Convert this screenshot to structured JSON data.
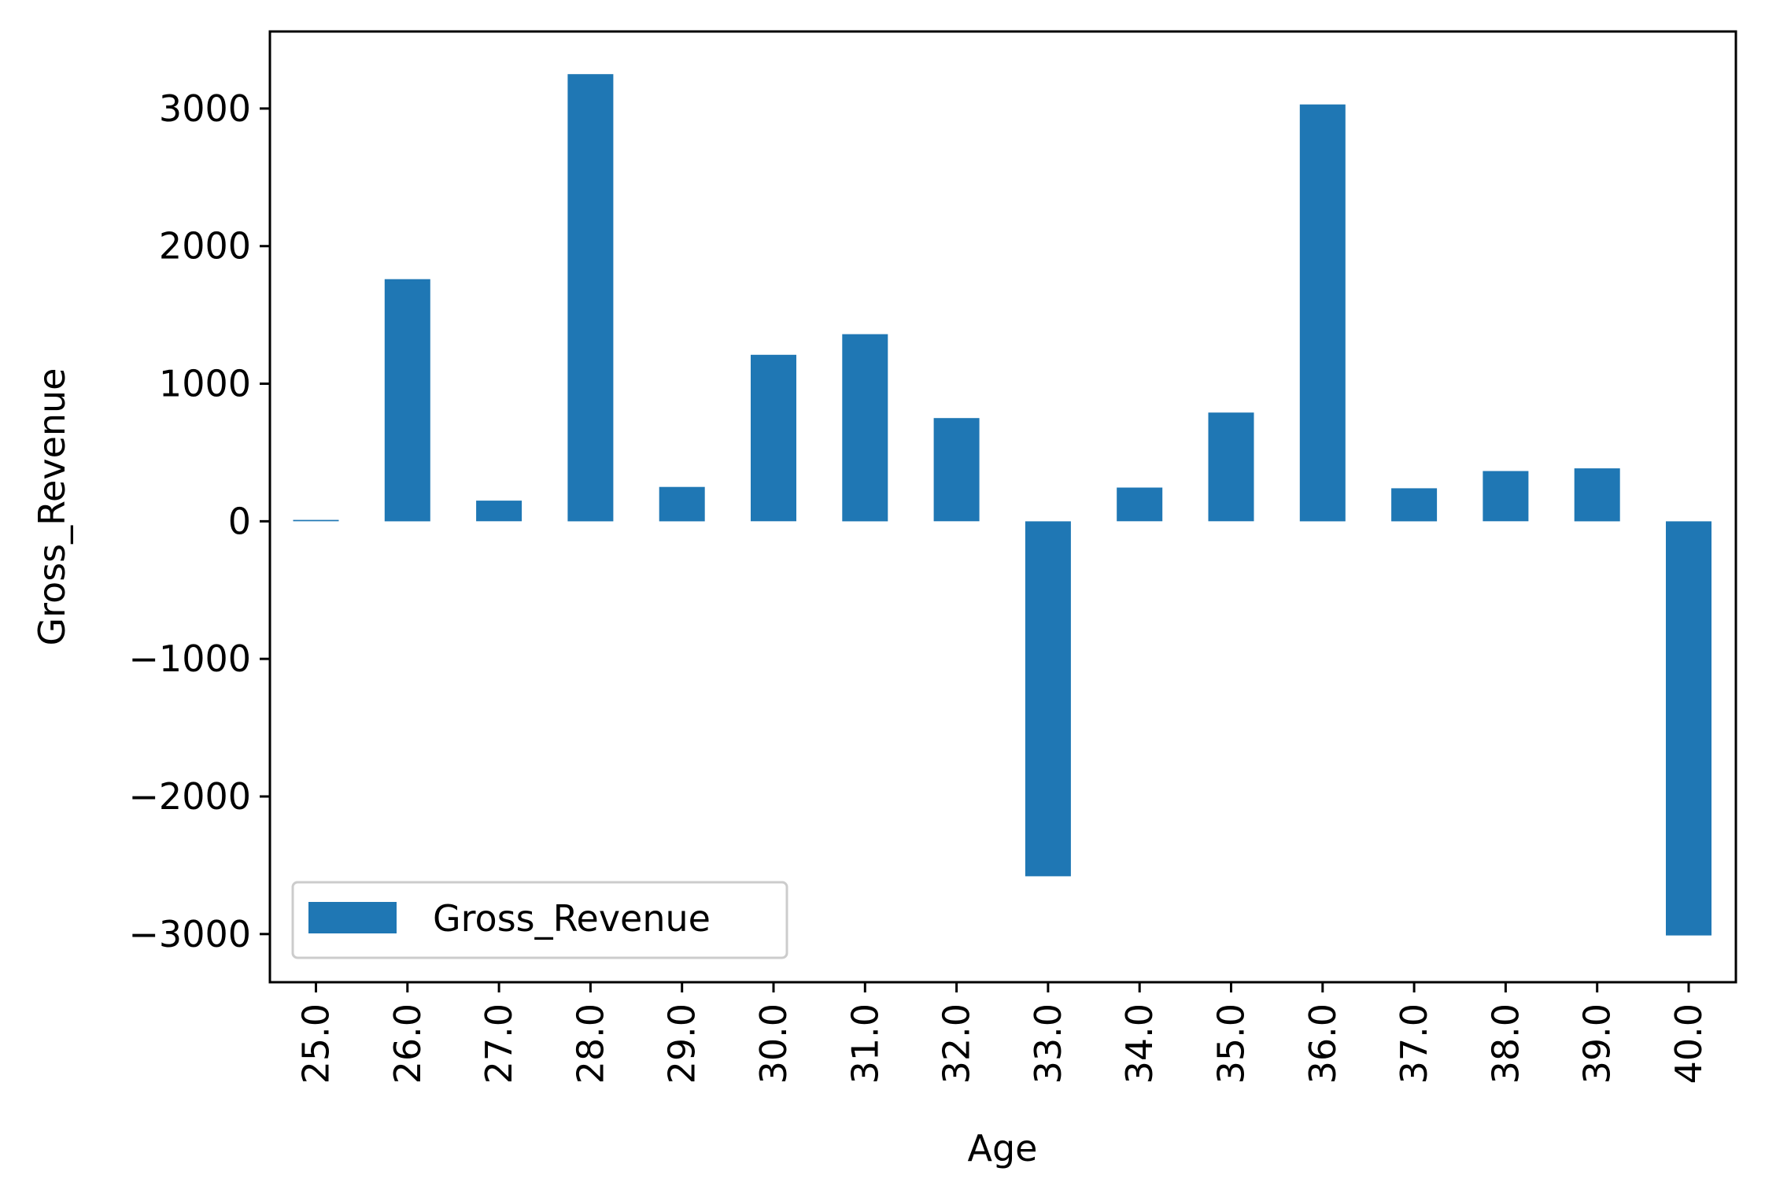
{
  "chart_data": {
    "type": "bar",
    "categories": [
      "25.0",
      "26.0",
      "27.0",
      "28.0",
      "29.0",
      "30.0",
      "31.0",
      "32.0",
      "33.0",
      "34.0",
      "35.0",
      "36.0",
      "37.0",
      "38.0",
      "39.0",
      "40.0"
    ],
    "series": [
      {
        "name": "Gross_Revenue",
        "color": "#1f77b4",
        "values": [
          10,
          1760,
          150,
          3250,
          250,
          1210,
          1360,
          750,
          -2580,
          245,
          790,
          3030,
          240,
          365,
          385,
          -3010
        ]
      }
    ],
    "xlabel": "Age",
    "ylabel": "Gross_Revenue",
    "ylim": [
      -3350,
      3560
    ],
    "yticks": [
      -3000,
      -2000,
      -1000,
      0,
      1000,
      2000,
      3000
    ],
    "ytick_labels": [
      "−3000",
      "−2000",
      "−1000",
      "0",
      "1000",
      "2000",
      "3000"
    ],
    "legend": {
      "placement": "lower-left",
      "label": "Gross_Revenue"
    },
    "grid": false
  }
}
